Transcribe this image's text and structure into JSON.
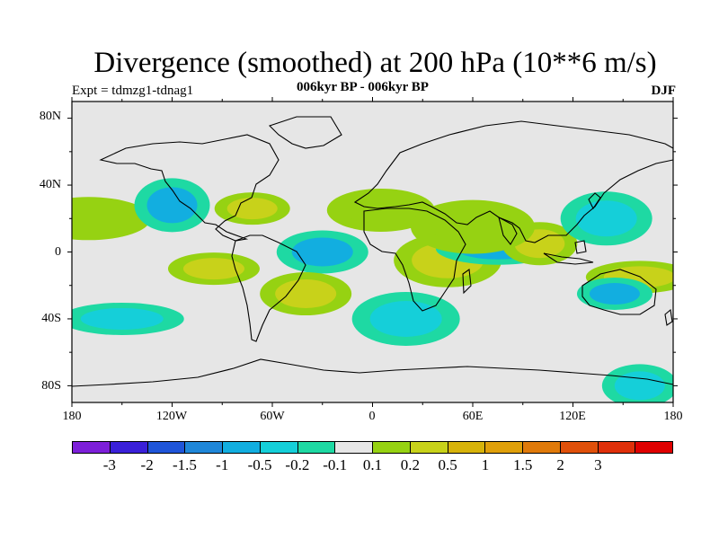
{
  "title": "Divergence (smoothed) at 200 hPa (10**6 m/s)",
  "experiment": "Expt = tdmzg1-tdnag1",
  "subtitle": "006kyr BP - 006kyr BP",
  "season": "DJF",
  "map": {
    "projection": "cylindrical equidistant",
    "lon_range": [
      -180,
      180
    ],
    "lat_range": [
      -90,
      90
    ],
    "lat_labels": [
      "80N",
      "40N",
      "0",
      "40S",
      "80S"
    ],
    "lon_labels": [
      "180",
      "120W",
      "60W",
      "0",
      "60E",
      "120E",
      "180"
    ]
  },
  "colorbar": {
    "colors": [
      "#7d1fd9",
      "#3a20d9",
      "#1f55d9",
      "#1f87d9",
      "#12aee0",
      "#15cfd9",
      "#1ed9a3",
      "#e6e6e6",
      "#96d212",
      "#c8d21a",
      "#d7b30a",
      "#e0a00a",
      "#e07a0a",
      "#e0500a",
      "#e0300a",
      "#e00000"
    ],
    "labels": [
      "-3",
      "-2",
      "-1.5",
      "-1",
      "-0.5",
      "-0.2",
      "-0.1",
      "0.1",
      "0.2",
      "0.5",
      "1",
      "1.5",
      "2",
      "3"
    ],
    "neutral_color": "#e6e6e6",
    "positive_color": "#c8d21a",
    "negative_color": "#12aee0"
  },
  "chart_data": {
    "type": "heatmap",
    "title": "Divergence (smoothed) at 200 hPa (10**6 m/s)",
    "variable": "200 hPa divergence (smoothed)",
    "units": "10**6 m/s",
    "season": "DJF",
    "contour_levels": [
      -3,
      -2,
      -1.5,
      -1,
      -0.5,
      -0.2,
      -0.1,
      0.1,
      0.2,
      0.5,
      1,
      1.5,
      2,
      3
    ],
    "xlabel": "",
    "ylabel": "",
    "x_range": [
      -180,
      180
    ],
    "y_range": [
      -90,
      90
    ],
    "features": [
      {
        "lon": -72,
        "lat": 26,
        "value": 0.5
      },
      {
        "lon": -30,
        "lat": 0,
        "value": -0.5
      },
      {
        "lon": 45,
        "lat": -5,
        "value": 0.5
      },
      {
        "lon": 75,
        "lat": 2,
        "value": -0.5
      },
      {
        "lon": 100,
        "lat": 5,
        "value": 0.5
      },
      {
        "lon": 140,
        "lat": 20,
        "value": -0.2
      },
      {
        "lon": 160,
        "lat": -15,
        "value": 0.5
      },
      {
        "lon": -170,
        "lat": 20,
        "value": 0.2
      },
      {
        "lon": -120,
        "lat": 28,
        "value": -0.5
      },
      {
        "lon": -95,
        "lat": -10,
        "value": 0.5
      },
      {
        "lon": 5,
        "lat": 25,
        "value": 0.2
      },
      {
        "lon": 60,
        "lat": 15,
        "value": 0.2
      },
      {
        "lon": 145,
        "lat": -25,
        "value": -0.5
      },
      {
        "lon": -40,
        "lat": -25,
        "value": 0.5
      },
      {
        "lon": 20,
        "lat": -40,
        "value": -0.2
      },
      {
        "lon": -150,
        "lat": -40,
        "value": -0.2
      },
      {
        "lon": 160,
        "lat": -80,
        "value": -0.2
      }
    ]
  }
}
